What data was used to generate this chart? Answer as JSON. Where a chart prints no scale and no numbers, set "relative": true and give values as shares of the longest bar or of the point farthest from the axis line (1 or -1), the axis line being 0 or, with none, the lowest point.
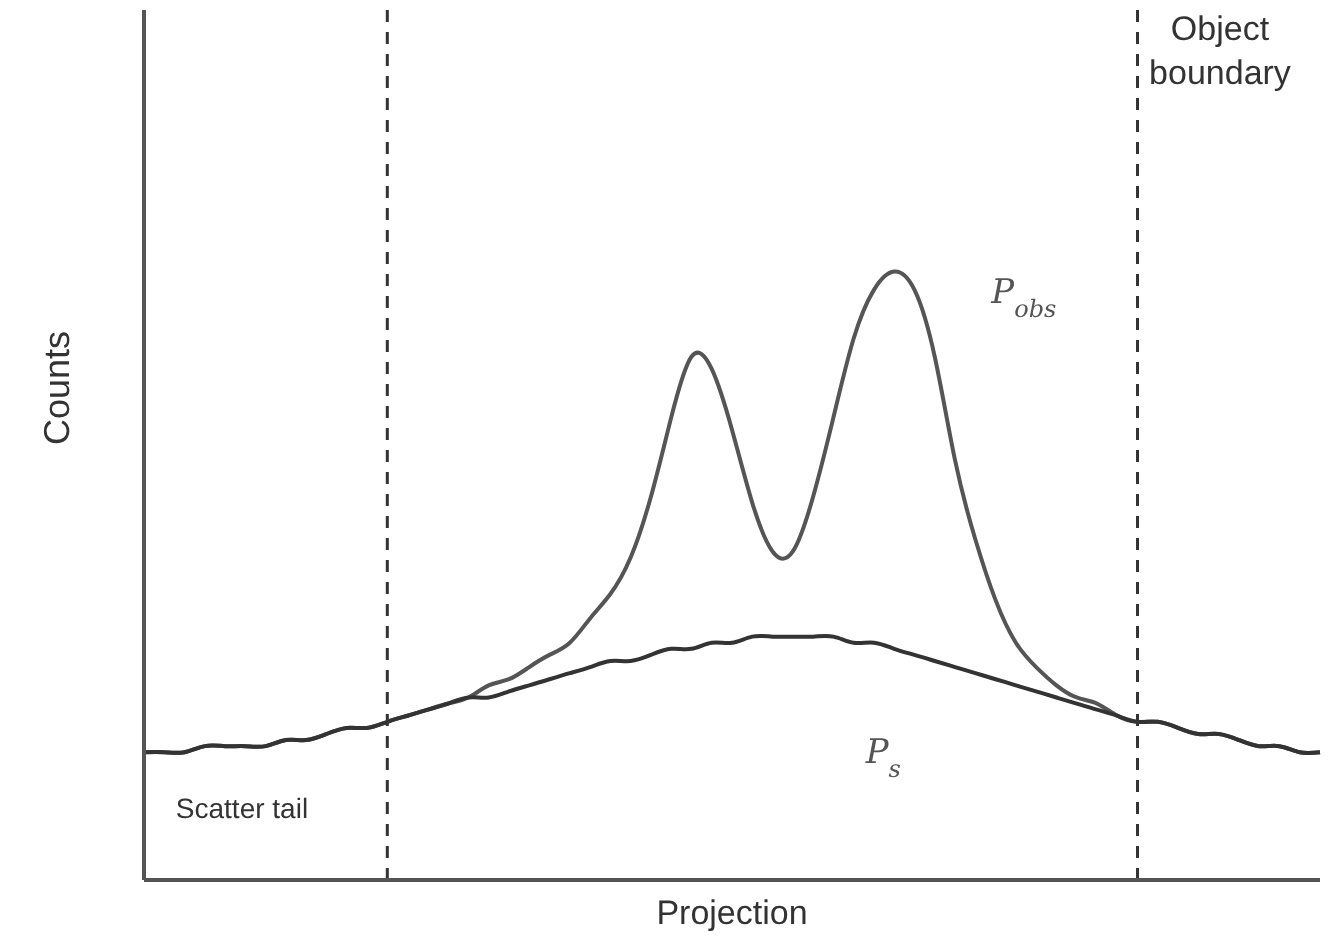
{
  "chart_data": {
    "type": "line",
    "relative": true,
    "xlabel": "Projection",
    "ylabel": "Counts",
    "categories": [
      null,
      null,
      null,
      null,
      null,
      null,
      null,
      null,
      null,
      null,
      null,
      null,
      null,
      null,
      null,
      null,
      null,
      null,
      null,
      null,
      null,
      null,
      null,
      null,
      null,
      null,
      null,
      null,
      null,
      null,
      null,
      null,
      null,
      null,
      null,
      null,
      null,
      null,
      null,
      null,
      null,
      null,
      null,
      null,
      null,
      null,
      null,
      null,
      null,
      null,
      null,
      null,
      null,
      null,
      null,
      null,
      null,
      null,
      null
    ],
    "series": [
      {
        "name": "P$_{obs}$",
        "color": "#555555",
        "values": [
          0.21,
          0.21,
          0.21,
          0.22,
          0.22,
          0.22,
          0.22,
          0.23,
          0.23,
          0.24,
          0.25,
          0.25,
          0.26,
          0.27,
          0.28,
          0.29,
          0.3,
          0.32,
          0.33,
          0.35,
          0.37,
          0.39,
          0.43,
          0.47,
          0.53,
          0.63,
          0.76,
          0.86,
          0.84,
          0.74,
          0.62,
          0.54,
          0.54,
          0.63,
          0.76,
          0.89,
          0.97,
          1.0,
          0.97,
          0.86,
          0.69,
          0.56,
          0.46,
          0.39,
          0.35,
          0.32,
          0.3,
          0.29,
          0.27,
          0.26,
          0.26,
          0.25,
          0.24,
          0.24,
          0.23,
          0.22,
          0.22,
          0.21,
          0.21
        ]
      },
      {
        "name": "P$_{s}$",
        "color": "#333333",
        "values": [
          0.21,
          0.21,
          0.21,
          0.22,
          0.22,
          0.22,
          0.22,
          0.23,
          0.23,
          0.24,
          0.25,
          0.25,
          0.26,
          0.27,
          0.28,
          0.29,
          0.3,
          0.3,
          0.31,
          0.32,
          0.33,
          0.34,
          0.35,
          0.36,
          0.36,
          0.37,
          0.38,
          0.38,
          0.39,
          0.39,
          0.4,
          0.4,
          0.4,
          0.4,
          0.4,
          0.39,
          0.39,
          0.38,
          0.37,
          0.36,
          0.35,
          0.34,
          0.33,
          0.32,
          0.31,
          0.3,
          0.29,
          0.28,
          0.27,
          0.26,
          0.26,
          0.25,
          0.24,
          0.24,
          0.23,
          0.22,
          0.22,
          0.21,
          0.21
        ]
      }
    ],
    "annotations": [
      "Object boundary",
      "Scatter tail"
    ],
    "marker": "none",
    "line_style": "solid",
    "grid": false,
    "legend": false
  }
}
